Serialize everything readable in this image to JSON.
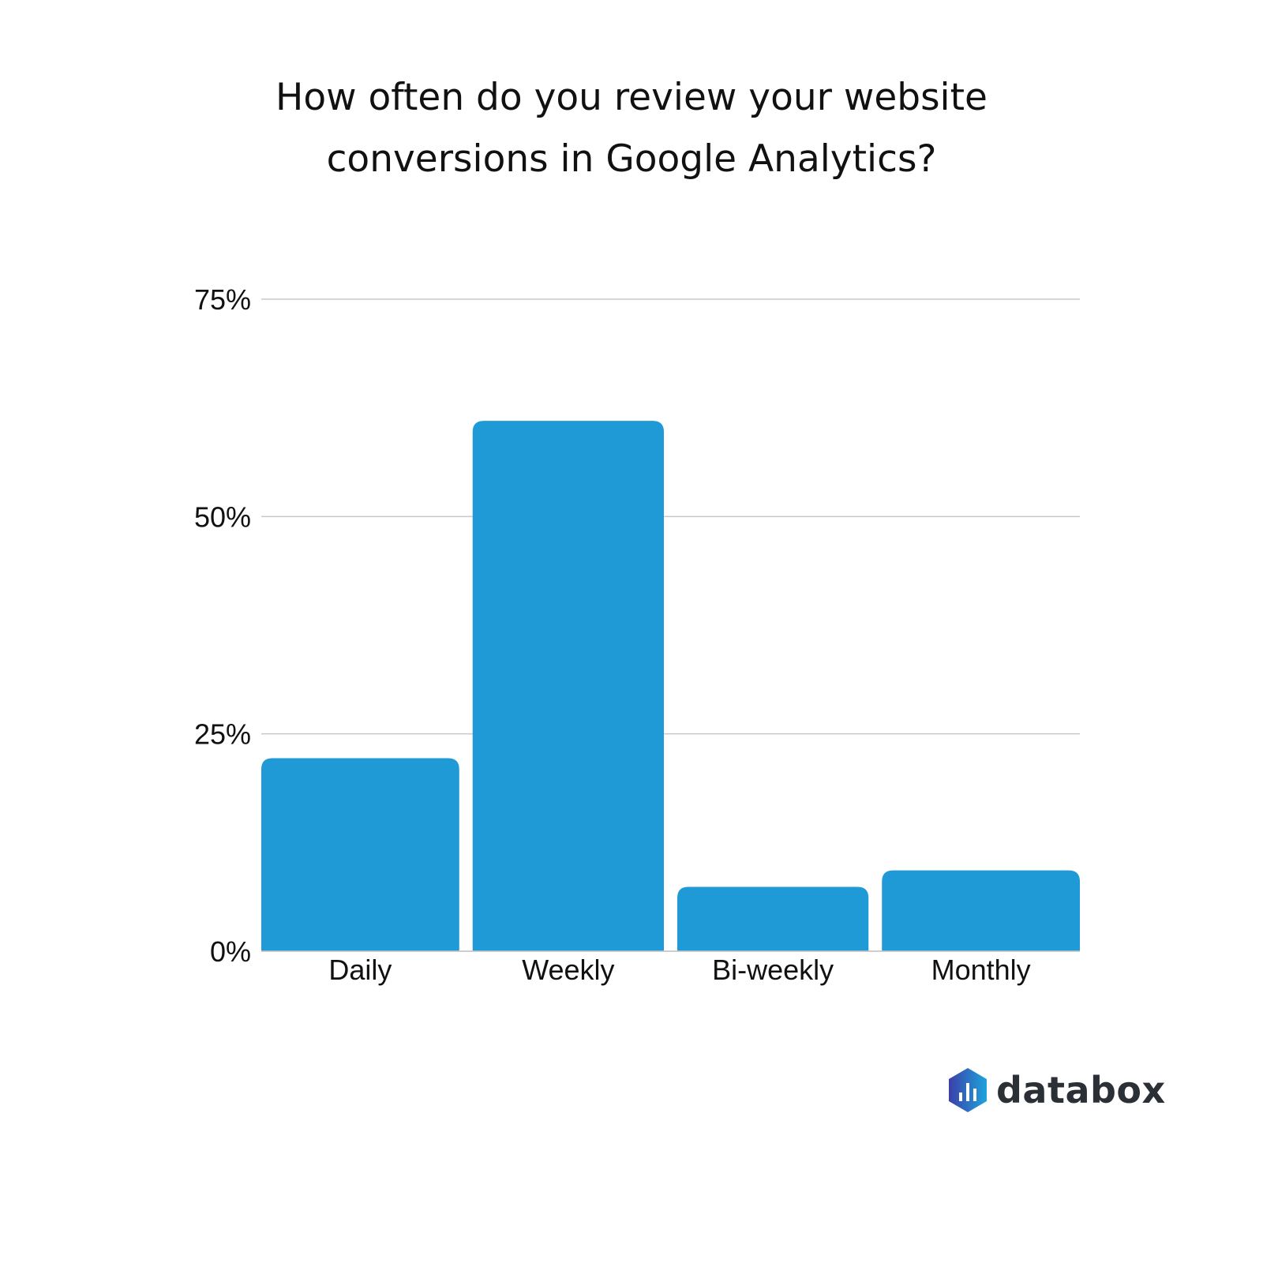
{
  "chart_data": {
    "type": "bar",
    "title": "How often do you review your website conversions in Google Analytics?",
    "categories": [
      "Daily",
      "Weekly",
      "Bi-weekly",
      "Monthly"
    ],
    "values": [
      22.2,
      61.0,
      7.4,
      9.3
    ],
    "xlabel": "",
    "ylabel": "",
    "ylim": [
      0,
      75
    ],
    "yticks": [
      0,
      25,
      50,
      75
    ],
    "ytick_labels": [
      "0%",
      "25%",
      "50%",
      "75%"
    ],
    "grid": true,
    "bar_color": "#1f9ad6"
  },
  "logo": {
    "text": "databox"
  }
}
